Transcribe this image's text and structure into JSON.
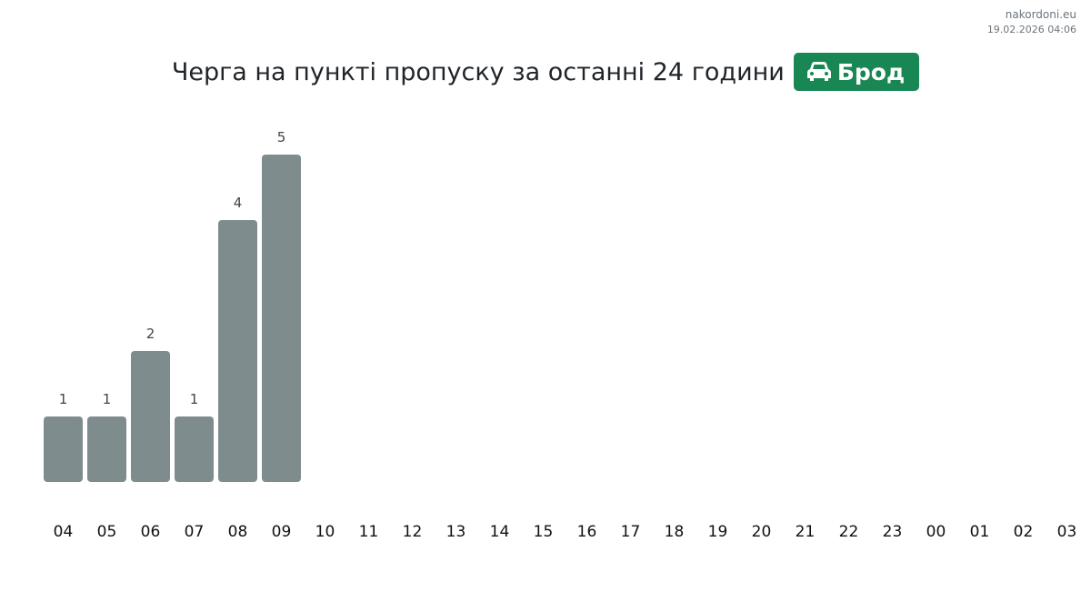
{
  "site": "nakordoni.eu",
  "timestamp": "19.02.2026 04:06",
  "header": {
    "title": "Черга на пункті пропуску за останні 24 години",
    "badge_label": "Брод",
    "badge_icon": "car-icon",
    "badge_color": "#198754"
  },
  "chart_data": {
    "type": "bar",
    "title": "Черга на пункті пропуску за останні 24 години",
    "categories": [
      "04",
      "05",
      "06",
      "07",
      "08",
      "09",
      "10",
      "11",
      "12",
      "13",
      "14",
      "15",
      "16",
      "17",
      "18",
      "19",
      "20",
      "21",
      "22",
      "23",
      "00",
      "01",
      "02",
      "03"
    ],
    "values": [
      1,
      1,
      2,
      1,
      4,
      5,
      null,
      null,
      null,
      null,
      null,
      null,
      null,
      null,
      null,
      null,
      null,
      null,
      null,
      null,
      null,
      null,
      null,
      null
    ],
    "bar_color": "#7f8c8d",
    "ylim": [
      0,
      5
    ],
    "grid": false,
    "data_labels": true
  }
}
